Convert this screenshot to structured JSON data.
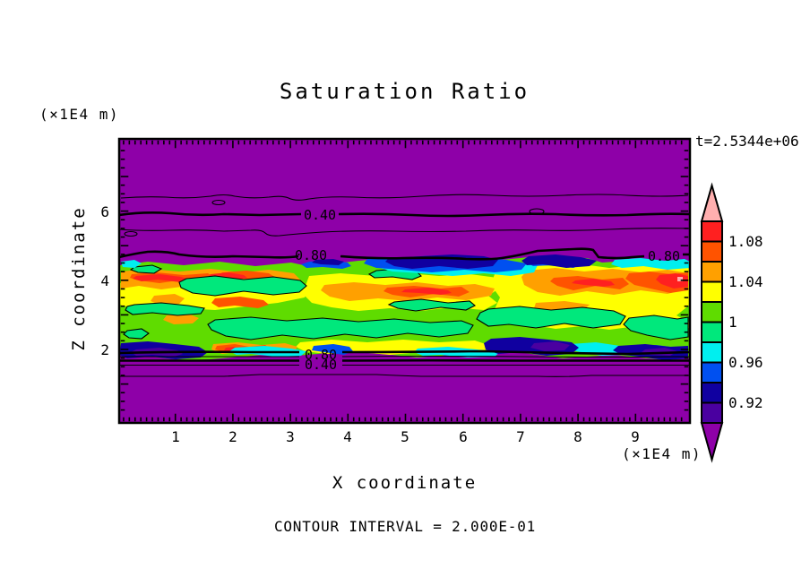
{
  "chart_data": {
    "type": "heatmap",
    "subtype": "filled-contour",
    "title": "Saturation Ratio",
    "xlabel": "X coordinate",
    "ylabel": "Z coordinate",
    "x_units": "(×1E4 m)",
    "z_units": "(×1E4 m)",
    "timestamp": "t=2.5344e+06",
    "contour_interval_label": "CONTOUR INTERVAL = 2.000E-01",
    "contour_interval": 0.2,
    "xlim": [
      0,
      10
    ],
    "zlim": [
      0,
      8.1
    ],
    "x_ticks": [
      "1",
      "2",
      "3",
      "4",
      "5",
      "6",
      "7",
      "8",
      "9"
    ],
    "z_ticks": [
      "6",
      "4",
      "2"
    ],
    "labeled_contour_levels": [
      0.4,
      0.8
    ],
    "in_plot_contour_labels": [
      "0.40",
      "0.80",
      "0.80",
      "0.80",
      "0.40"
    ],
    "colorbar": {
      "labels": [
        "1.08",
        "1.04",
        "1",
        "0.96",
        "0.92"
      ],
      "segments": [
        {
          "range": [
            1.08,
            1.1
          ],
          "color": "#FF2020"
        },
        {
          "range": [
            1.06,
            1.08
          ],
          "color": "#FF5300"
        },
        {
          "range": [
            1.04,
            1.06
          ],
          "color": "#FFA000"
        },
        {
          "range": [
            1.02,
            1.04
          ],
          "color": "#FFFF00"
        },
        {
          "range": [
            1.0,
            1.02
          ],
          "color": "#5FDC00"
        },
        {
          "range": [
            0.98,
            1.0
          ],
          "color": "#00E87C"
        },
        {
          "range": [
            0.96,
            0.98
          ],
          "color": "#00EFEF"
        },
        {
          "range": [
            0.94,
            0.96
          ],
          "color": "#0050F0"
        },
        {
          "range": [
            0.92,
            0.94
          ],
          "color": "#1000A0"
        },
        {
          "range": [
            0.9,
            0.92
          ],
          "color": "#4A00A0"
        }
      ],
      "above_color": "#FFAFAF",
      "below_color": "#8E00A8"
    },
    "description": "Filled contour field: a high saturation-ratio band (≈0.9–1.1) lies between z≈2 and z≈4.5 (×1E4 m) across all x; background saturation <0.9 (purple) with line contours at 0.2 intervals (0.40 and 0.80 labeled) above and below the band."
  },
  "palette": {
    "background": "#FFFFFF",
    "purple": "#8E00A8",
    "indigo": "#4A00A0",
    "navy": "#1000A0",
    "blue": "#0050F0",
    "cyan": "#00EFEF",
    "spring_green": "#00E87C",
    "chartreuse": "#5FDC00",
    "yellow": "#FFFF00",
    "orange": "#FFA000",
    "orange_red": "#FF5300",
    "red": "#FF2020",
    "pink": "#FFAFAF",
    "contour_line": "#000000",
    "text": "#000000"
  }
}
